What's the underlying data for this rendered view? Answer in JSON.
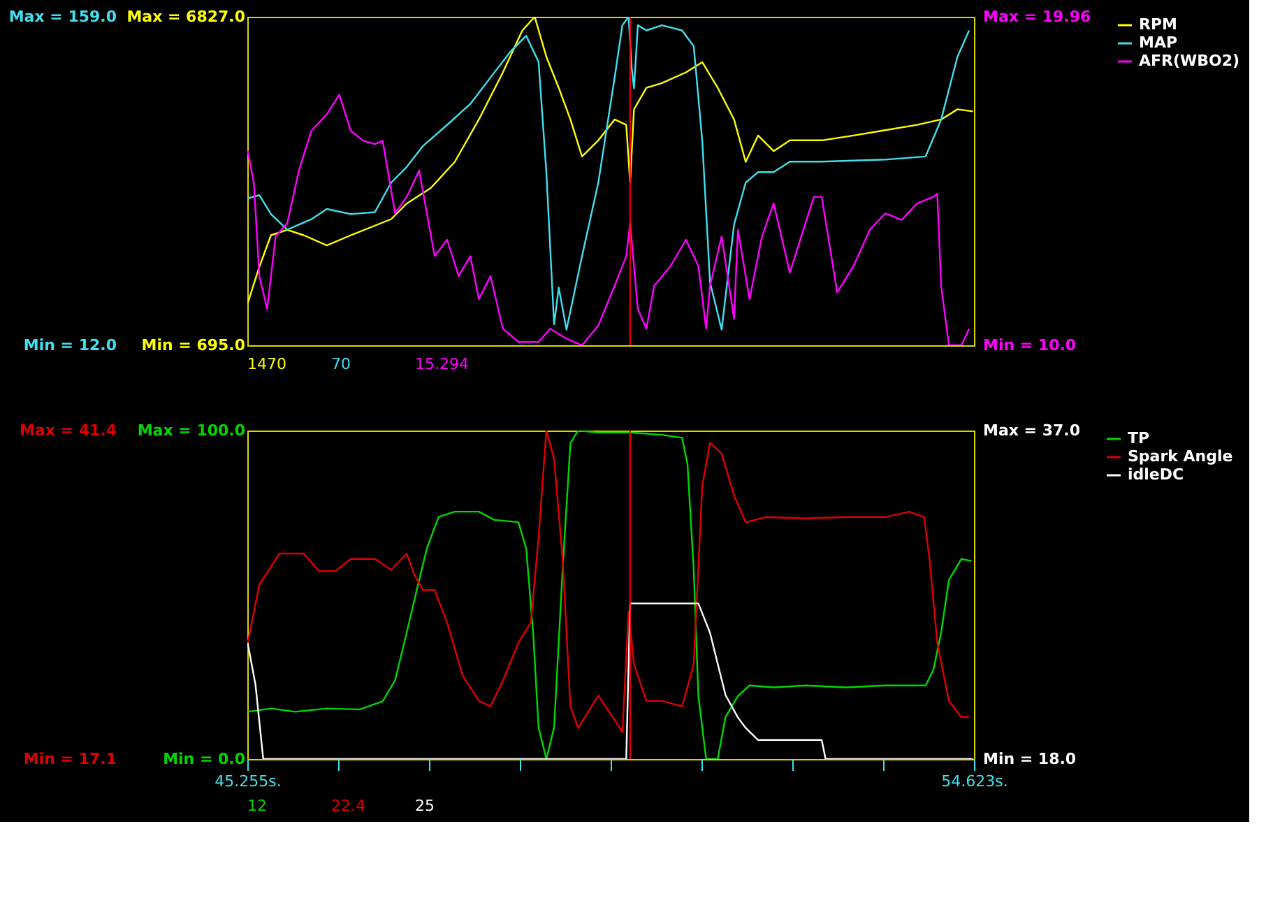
{
  "chart_data": [
    {
      "type": "line",
      "xlim": [
        45.255,
        54.623
      ],
      "tick_labels": "y",
      "legend": "right",
      "ylim": [
        695,
        6827
      ],
      "yticks": [
        {
          "value": 695,
          "label": "Min = 695.0"
        },
        {
          "value": 6827,
          "label": "Max = 6827.0"
        }
      ],
      "y2lim": [
        12,
        159
      ],
      "y2ticks": [
        {
          "value": 12,
          "label": "Min = 12.0"
        },
        {
          "value": 159,
          "label": "Max = 159.0"
        }
      ],
      "y3lim": [
        10,
        19.96
      ],
      "y3ticks": [
        {
          "value": 10,
          "label": "Min = 10.0"
        },
        {
          "value": 19.96,
          "label": "Max = 19.96"
        }
      ],
      "ref_lines": [
        {
          "axis": "x",
          "value": 50.19,
          "color": "#ff0000"
        }
      ],
      "annotations": [
        "1470",
        "70",
        "15.294"
      ],
      "series": [
        {
          "name": "RPM",
          "color": "#ffff00",
          "axis": "y",
          "x": [
            45.26,
            45.41,
            45.56,
            45.77,
            45.98,
            46.28,
            46.59,
            47.11,
            47.31,
            47.62,
            47.93,
            48.24,
            48.55,
            48.8,
            48.96,
            49.11,
            49.27,
            49.42,
            49.57,
            49.78,
            49.99,
            50.14,
            50.19,
            50.24,
            50.4,
            50.6,
            50.91,
            51.12,
            51.32,
            51.53,
            51.68,
            51.84,
            52.04,
            52.25,
            52.66,
            53.07,
            53.48,
            53.89,
            54.2,
            54.41,
            54.61
          ],
          "values": [
            1480,
            2160,
            2750,
            2850,
            2750,
            2560,
            2750,
            3050,
            3340,
            3630,
            4120,
            4910,
            5790,
            6570,
            6827,
            6080,
            5500,
            4910,
            4220,
            4520,
            4910,
            4810,
            3730,
            5100,
            5500,
            5590,
            5790,
            5980,
            5500,
            4910,
            4120,
            4610,
            4320,
            4520,
            4520,
            4610,
            4710,
            4810,
            4910,
            5100,
            5060
          ]
        },
        {
          "name": "MAP",
          "color": "#40e0f0",
          "axis": "y2",
          "x": [
            45.26,
            45.41,
            45.56,
            45.77,
            46.08,
            46.28,
            46.59,
            46.9,
            47.11,
            47.31,
            47.52,
            47.83,
            48.13,
            48.44,
            48.65,
            48.85,
            49.01,
            49.11,
            49.21,
            49.27,
            49.37,
            49.57,
            49.78,
            49.99,
            50.09,
            50.17,
            50.21,
            50.24,
            50.29,
            50.4,
            50.6,
            50.86,
            51.01,
            51.12,
            51.22,
            51.37,
            51.53,
            51.68,
            51.84,
            52.04,
            52.25,
            52.66,
            53.48,
            54.0,
            54.2,
            54.41,
            54.56
          ],
          "values": [
            77.7,
            79.2,
            70.7,
            63.7,
            68.4,
            73.0,
            70.7,
            71.6,
            84.8,
            91.8,
            101.2,
            110.6,
            120.0,
            134.1,
            143.5,
            150.5,
            138.8,
            89.5,
            21.4,
            37.8,
            19.0,
            51.9,
            84.8,
            131.7,
            155.2,
            159.0,
            136.4,
            127.0,
            155.2,
            152.9,
            155.2,
            152.9,
            145.8,
            103.6,
            40.2,
            19.0,
            66.0,
            84.8,
            89.5,
            89.5,
            94.2,
            94.2,
            95.1,
            96.5,
            113.0,
            141.1,
            152.9
          ]
        },
        {
          "name": "AFR(WBO2)",
          "color": "#ff00ff",
          "axis": "y3",
          "x": [
            45.26,
            45.34,
            45.41,
            45.51,
            45.62,
            45.77,
            45.92,
            46.08,
            46.28,
            46.44,
            46.59,
            46.75,
            46.9,
            47.0,
            47.16,
            47.31,
            47.47,
            47.57,
            47.67,
            47.83,
            47.98,
            48.13,
            48.24,
            48.39,
            48.55,
            48.75,
            49.01,
            49.16,
            49.37,
            49.57,
            49.78,
            49.99,
            50.14,
            50.19,
            50.29,
            50.4,
            50.5,
            50.71,
            50.91,
            51.07,
            51.17,
            51.22,
            51.37,
            51.53,
            51.58,
            51.73,
            51.89,
            52.04,
            52.25,
            52.45,
            52.56,
            52.66,
            52.86,
            53.07,
            53.28,
            53.48,
            53.69,
            53.89,
            54.1,
            54.15,
            54.2,
            54.3,
            54.46,
            54.56
          ],
          "values": [
            15.9,
            14.9,
            12.1,
            11.1,
            13.3,
            13.7,
            15.3,
            16.5,
            17.0,
            17.6,
            16.5,
            16.2,
            16.1,
            16.2,
            14.0,
            14.5,
            15.3,
            14.0,
            12.7,
            13.2,
            12.1,
            12.7,
            11.4,
            12.1,
            10.5,
            10.1,
            10.1,
            10.5,
            10.2,
            10.0,
            10.6,
            11.8,
            12.7,
            13.7,
            11.1,
            10.5,
            11.8,
            12.4,
            13.2,
            12.4,
            10.5,
            11.8,
            13.3,
            10.8,
            13.5,
            11.4,
            13.3,
            14.3,
            12.2,
            13.7,
            14.5,
            14.5,
            11.6,
            12.4,
            13.5,
            14.0,
            13.8,
            14.3,
            14.5,
            14.6,
            11.8,
            10.0,
            10.0,
            10.5
          ]
        }
      ]
    },
    {
      "type": "line",
      "xlim": [
        45.255,
        54.623
      ],
      "legend": "right",
      "xticks": [
        {
          "value": 45.255,
          "label": "45.255s."
        },
        {
          "value": 46.426,
          "label": null
        },
        {
          "value": 47.597,
          "label": null
        },
        {
          "value": 48.768,
          "label": null
        },
        {
          "value": 49.939,
          "label": null
        },
        {
          "value": 51.11,
          "label": null
        },
        {
          "value": 52.281,
          "label": null
        },
        {
          "value": 53.452,
          "label": null
        },
        {
          "value": 54.623,
          "label": "54.623s."
        }
      ],
      "ylim": [
        0,
        100
      ],
      "yticks": [
        {
          "value": 0,
          "label": "Min = 0.0"
        },
        {
          "value": 100,
          "label": "Max = 100.0"
        }
      ],
      "y2lim": [
        17.1,
        41.4
      ],
      "y2ticks": [
        {
          "value": 17.1,
          "label": "Min = 17.1"
        },
        {
          "value": 41.4,
          "label": "Max = 41.4"
        }
      ],
      "y3lim": [
        18,
        37
      ],
      "y3ticks": [
        {
          "value": 18,
          "label": "Min = 18.0"
        },
        {
          "value": 37,
          "label": "Max = 37.0"
        }
      ],
      "ref_lines": [
        {
          "axis": "x",
          "value": 50.19,
          "color": "#ff0000"
        }
      ],
      "annotations": [
        "12",
        "22.4",
        "25"
      ],
      "series": [
        {
          "name": "TP",
          "color": "#00d800",
          "axis": "y",
          "x": [
            45.26,
            45.56,
            45.87,
            46.28,
            46.7,
            47.0,
            47.16,
            47.31,
            47.47,
            47.57,
            47.72,
            47.93,
            48.24,
            48.44,
            48.75,
            48.85,
            48.94,
            49.01,
            49.11,
            49.21,
            49.32,
            49.42,
            49.52,
            49.78,
            50.19,
            50.6,
            50.86,
            50.93,
            51.01,
            51.07,
            51.17,
            51.32,
            51.42,
            51.58,
            51.73,
            52.04,
            52.45,
            52.97,
            53.48,
            54.0,
            54.1,
            54.2,
            54.3,
            54.46,
            54.59
          ],
          "values": [
            14.4,
            15.4,
            14.4,
            15.4,
            15.1,
            17.6,
            24.0,
            38.5,
            54.5,
            64.1,
            73.7,
            75.3,
            75.3,
            72.8,
            72.1,
            64.1,
            38.5,
            9.6,
            0,
            9.6,
            57.7,
            96.2,
            100,
            99.4,
            99.4,
            98.7,
            97.8,
            89.7,
            57.7,
            19.2,
            0,
            0,
            12.8,
            19.2,
            22.4,
            21.8,
            22.4,
            21.8,
            22.4,
            22.4,
            27.2,
            38.5,
            54.5,
            60.9,
            60.3
          ]
        },
        {
          "name": "Spark Angle",
          "color": "#e00000",
          "axis": "y2",
          "x": [
            45.26,
            45.41,
            45.67,
            45.98,
            46.18,
            46.39,
            46.59,
            46.9,
            47.11,
            47.31,
            47.41,
            47.52,
            47.67,
            47.83,
            48.03,
            48.24,
            48.39,
            48.55,
            48.75,
            48.91,
            49.01,
            49.11,
            49.21,
            49.32,
            49.42,
            49.52,
            49.78,
            50.09,
            50.17,
            50.24,
            50.4,
            50.6,
            50.86,
            51.01,
            51.12,
            51.22,
            51.37,
            51.53,
            51.68,
            51.94,
            52.45,
            52.97,
            53.48,
            53.79,
            53.98,
            54.05,
            54.15,
            54.3,
            54.46,
            54.56
          ],
          "values": [
            25.7,
            30.0,
            32.3,
            32.3,
            31.0,
            31.0,
            31.9,
            31.9,
            31.1,
            32.3,
            30.7,
            29.6,
            29.6,
            27.2,
            23.3,
            21.4,
            21.0,
            22.9,
            25.7,
            27.2,
            33.5,
            41.4,
            39.3,
            31.9,
            21.0,
            19.4,
            21.8,
            19.1,
            28.0,
            24.1,
            21.4,
            21.4,
            21.0,
            24.1,
            37.3,
            40.5,
            39.7,
            36.6,
            34.6,
            35.0,
            34.9,
            35.0,
            35.0,
            35.4,
            35.0,
            31.9,
            25.7,
            21.4,
            20.2,
            20.2
          ]
        },
        {
          "name": "idleDC",
          "color": "#ffffff",
          "axis": "y3",
          "x": [
            45.26,
            45.36,
            45.46,
            50.14,
            50.19,
            51.07,
            51.22,
            51.42,
            51.58,
            51.68,
            51.84,
            52.66,
            52.71,
            54.61
          ],
          "values": [
            24.7,
            22.3,
            18.0,
            18.0,
            27.0,
            27.0,
            25.3,
            21.7,
            20.4,
            19.8,
            19.1,
            19.1,
            18.0,
            18.0
          ]
        }
      ]
    }
  ]
}
